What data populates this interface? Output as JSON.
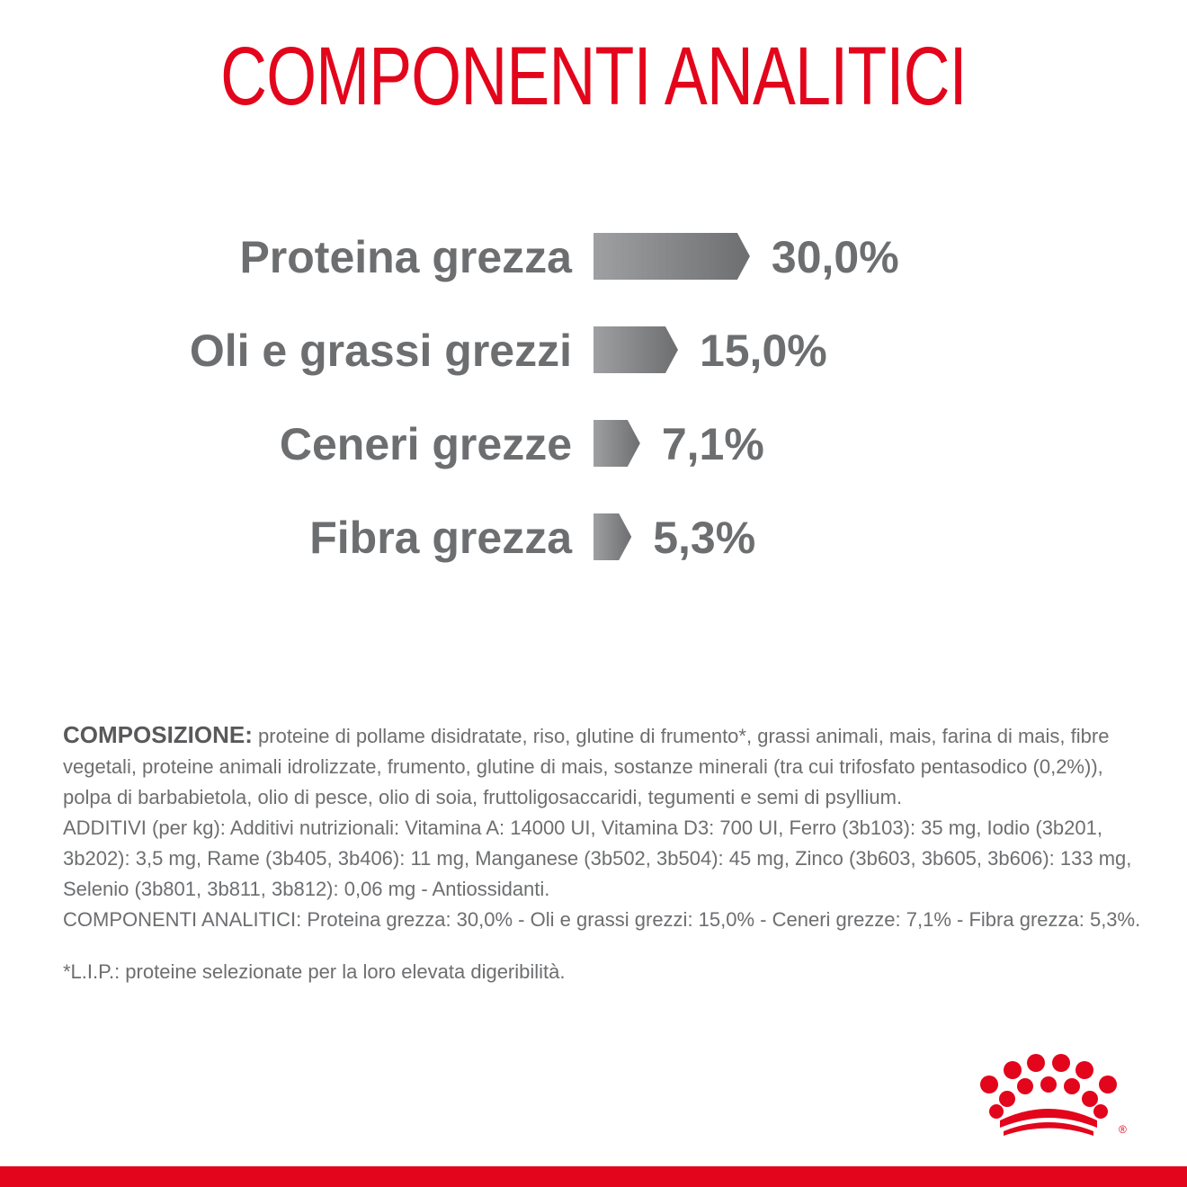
{
  "title": "COMPONENTI ANALITICI",
  "chart_data": {
    "type": "bar",
    "title": "COMPONENTI ANALITICI",
    "categories": [
      "Proteina grezza",
      "Oli e grassi grezzi",
      "Ceneri grezze",
      "Fibra grezza"
    ],
    "values": [
      30.0,
      15.0,
      7.1,
      5.3
    ],
    "value_labels": [
      "30,0%",
      "15,0%",
      "7,1%",
      "5,3%"
    ],
    "orientation": "horizontal",
    "bar_shape": "arrow",
    "bar_gradient": [
      "#9fa0a2",
      "#6d6e70"
    ],
    "label_color": "#6d6e70"
  },
  "composition": {
    "lead": "COMPOSIZIONE:",
    "ingredients": " proteine di pollame disidratate, riso, glutine di frumento*, grassi animali, mais, farina di mais, fibre vegetali, proteine animali idrolizzate, frumento, glutine di mais, sostanze minerali (tra cui trifosfato pentasodico (0,2%)), polpa di barbabietola, olio di pesce, olio di soia, fruttoligosaccaridi, tegumenti e semi di psyllium.",
    "additives": "ADDITIVI (per kg): Additivi nutrizionali: Vitamina A: 14000 UI, Vitamina D3: 700 UI, Ferro (3b103): 35 mg, Iodio (3b201, 3b202): 3,5 mg, Rame (3b405, 3b406): 11 mg, Manganese (3b502, 3b504): 45 mg, Zinco (3b603, 3b605, 3b606): 133 mg, Selenio (3b801, 3b811, 3b812): 0,06 mg - Antiossidanti.",
    "analytics": "COMPONENTI ANALITICI: Proteina grezza: 30,0% - Oli e grassi grezzi: 15,0% - Ceneri grezze: 7,1% - Fibra grezza: 5,3%."
  },
  "footnote": "*L.I.P.: proteine selezionate per la loro elevata digeribilità.",
  "colors": {
    "brand_red": "#e3051b",
    "text_gray": "#6d6e70"
  },
  "logo": {
    "icon": "crown-icon",
    "mark": "®"
  }
}
